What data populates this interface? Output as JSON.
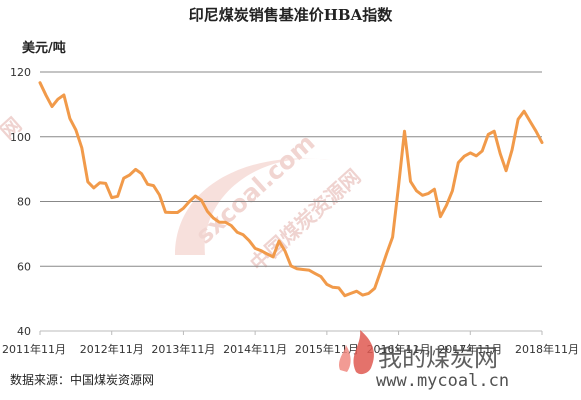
{
  "unit_label": "美元/吨",
  "source_label": "数据来源：中国煤炭资源网",
  "watermark": {
    "domain": "sxcoal.com",
    "name": "中国煤炭资源网",
    "side_mark": "网",
    "brand_text": "我的煤炭网",
    "brand_url": "www.mycoal.cn"
  },
  "colors": {
    "line": "#f19a4a",
    "grid": "#888888",
    "axis": "#bbbbbb"
  },
  "chart_data": {
    "type": "line",
    "title": "印尼煤炭销售基准价HBA指数",
    "xlabel": "",
    "ylabel": "美元/吨",
    "ylim": [
      40,
      120
    ],
    "yticks": [
      40,
      60,
      80,
      100,
      120
    ],
    "grid": true,
    "xtick_labels": [
      "2011年11月",
      "2012年11月",
      "2013年11月",
      "2014年11月",
      "2015年11月",
      "2016年11月",
      "2017年11月",
      "2018年11月"
    ],
    "series": [
      {
        "values": [
          116.7,
          112.8,
          109.3,
          111.6,
          112.9,
          105.6,
          102.1,
          96.6,
          86.1,
          84.2,
          85.8,
          85.6,
          81.2,
          81.6,
          87.2,
          88.2,
          89.9,
          88.6,
          85.3,
          84.9,
          82.0,
          76.7,
          76.6,
          76.6,
          77.9,
          80.0,
          81.7,
          80.4,
          77.0,
          74.9,
          73.6,
          73.6,
          72.6,
          70.5,
          69.7,
          67.9,
          65.5,
          64.8,
          63.8,
          62.9,
          67.8,
          64.7,
          60.1,
          59.2,
          59.0,
          58.8,
          57.8,
          56.8,
          54.4,
          53.5,
          53.3,
          50.9,
          51.6,
          52.3,
          51.1,
          51.6,
          53.2,
          58.4,
          63.9,
          69.0,
          84.9,
          101.7,
          86.2,
          83.3,
          81.9,
          82.5,
          83.8,
          75.3,
          78.8,
          83.3,
          92.0,
          94.0,
          95.0,
          94.1,
          95.6,
          100.7,
          101.7,
          94.8,
          89.5,
          96.0,
          105.4,
          107.9,
          104.8,
          101.7,
          98.2
        ]
      }
    ]
  }
}
